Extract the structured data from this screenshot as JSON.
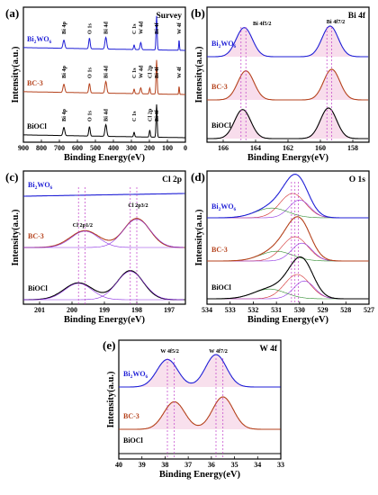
{
  "colors": {
    "bi2wo6": "#1f1fd6",
    "bc3": "#b5421c",
    "biocl": "#000000",
    "component_purple": "#8a2be2",
    "component_red": "#d12b2b",
    "component_green": "#2d8a2d",
    "component_orange": "#d4881a",
    "guide": "#c03cc8",
    "fill_pink": "#f3c7df"
  },
  "chart_data": [
    {
      "id": "a",
      "type": "line",
      "panel_label": "(a)",
      "title": "Survey",
      "xlabel": "Binding Energy(eV)",
      "ylabel": "Intensity(a.u.)",
      "xlim": [
        900,
        0
      ],
      "xticks": [
        900,
        800,
        700,
        600,
        500,
        400,
        300,
        200,
        100,
        0
      ],
      "series": [
        {
          "name": "Bi2WO6",
          "label_main": "Bi",
          "label_sub1": "2",
          "label_mid": "WO",
          "label_sub2": "6",
          "color": "bi2wo6",
          "offset": 2.0,
          "peaks": [
            [
              675,
              0.35,
              5
            ],
            [
              533,
              0.45,
              4
            ],
            [
              442,
              0.5,
              5
            ],
            [
              285,
              0.2,
              3
            ],
            [
              248,
              0.3,
              4
            ],
            [
              160,
              1.45,
              3
            ],
            [
              35,
              0.45,
              2
            ]
          ]
        },
        {
          "name": "BC-3",
          "label_main": "BC-3",
          "color": "bc3",
          "offset": 1.0,
          "peaks": [
            [
              675,
              0.35,
              5
            ],
            [
              533,
              0.4,
              4
            ],
            [
              442,
              0.5,
              5
            ],
            [
              285,
              0.2,
              3
            ],
            [
              248,
              0.25,
              4
            ],
            [
              198,
              0.25,
              3
            ],
            [
              160,
              1.45,
              3
            ],
            [
              35,
              0.35,
              2
            ]
          ]
        },
        {
          "name": "BiOCl",
          "label_main": "BiOCl",
          "color": "biocl",
          "offset": 0.0,
          "peaks": [
            [
              675,
              0.35,
              5
            ],
            [
              533,
              0.4,
              4
            ],
            [
              442,
              0.5,
              5
            ],
            [
              285,
              0.2,
              3
            ],
            [
              198,
              0.3,
              3
            ],
            [
              160,
              1.4,
              3
            ]
          ]
        }
      ],
      "annotations": [
        "Bi 4p",
        "O 1s",
        "Bi 4d",
        "C 1s",
        "W 4d",
        "Cl 2p",
        "Bi 4f",
        "W 4f"
      ]
    },
    {
      "id": "b",
      "type": "line",
      "panel_label": "(b)",
      "title": "Bi 4f",
      "xlabel": "Binding Energy(eV)",
      "ylabel": "Intensity(a.u.)",
      "xlim": [
        167,
        157
      ],
      "xticks": [
        166,
        164,
        162,
        160,
        158
      ],
      "peak_labels": [
        "Bi 4f5/2",
        "Bi 4f7/2"
      ],
      "samples": [
        "Bi2WO6",
        "BC-3",
        "BiOCl"
      ],
      "peak_positions": {
        "Bi2WO6": [
          164.7,
          159.4
        ],
        "BC-3": [
          164.6,
          159.3
        ],
        "BiOCl": [
          164.8,
          159.5
        ]
      }
    },
    {
      "id": "c",
      "type": "line",
      "panel_label": "(c)",
      "title": "Cl 2p",
      "xlabel": "Binding Energy(eV)",
      "ylabel": "Intensity(a.u.)",
      "xlim": [
        201.5,
        196.5
      ],
      "xticks": [
        201,
        200,
        199,
        198,
        197
      ],
      "peak_labels": [
        "Cl 2p1/2",
        "Cl 2p3/2"
      ],
      "samples": [
        "Bi2WO6",
        "BC-3",
        "BiOCl"
      ],
      "peak_positions": {
        "BC-3": [
          199.6,
          198.0
        ],
        "BiOCl": [
          199.8,
          198.2
        ]
      }
    },
    {
      "id": "d",
      "type": "line",
      "panel_label": "(d)",
      "title": "O 1s",
      "xlabel": "Binding Energy(eV)",
      "ylabel": "Intensity(a.u.)",
      "xlim": [
        534,
        527
      ],
      "xticks": [
        534,
        533,
        532,
        531,
        530,
        529,
        528,
        527
      ],
      "samples": [
        "Bi2WO6",
        "BC-3",
        "BiOCl"
      ],
      "peak_positions": {
        "Bi2WO6": [
          530.3,
          530.0,
          531.2
        ],
        "BC-3": [
          530.2,
          529.9,
          531.0
        ],
        "BiOCl": [
          530.1,
          529.8,
          531.3
        ]
      }
    },
    {
      "id": "e",
      "type": "line",
      "panel_label": "(e)",
      "title": "W 4f",
      "xlabel": "Binding Energy(eV)",
      "ylabel": "Intensity(a.u.)",
      "xlim": [
        40,
        33
      ],
      "xticks": [
        40,
        39,
        38,
        37,
        36,
        35,
        34,
        33
      ],
      "peak_labels": [
        "W 4f5/2",
        "W 4f7/2"
      ],
      "samples": [
        "Bi2WO6",
        "BC-3",
        "BiOCl"
      ],
      "peak_positions": {
        "Bi2WO6": [
          37.9,
          35.8
        ],
        "BC-3": [
          37.6,
          35.5
        ]
      }
    }
  ]
}
